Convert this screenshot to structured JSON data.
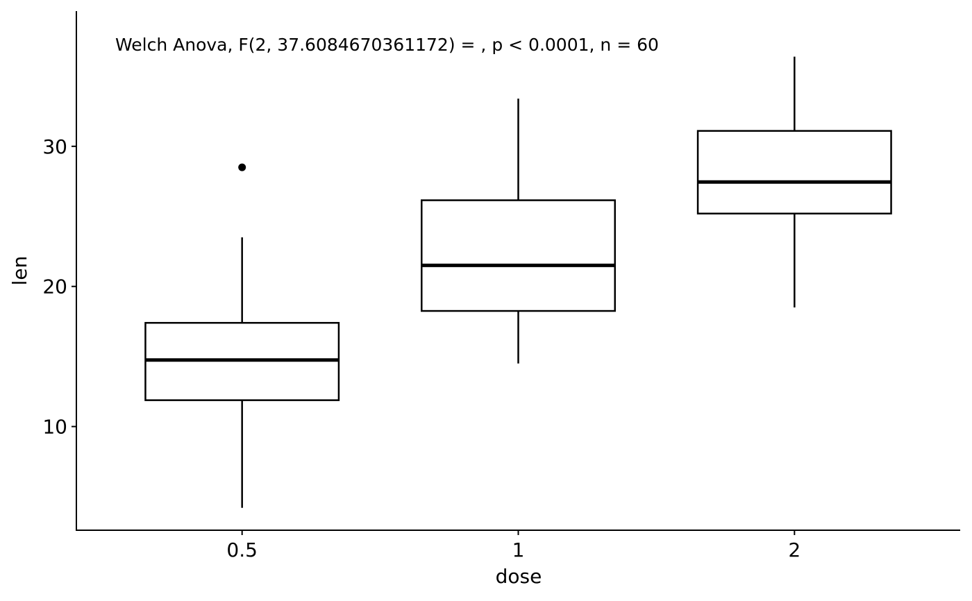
{
  "chart_data": {
    "type": "box",
    "title": "",
    "annotation": "Welch Anova, F(2, 37.6084670361172) = , p < 0.0001, n = 60",
    "xlabel": "dose",
    "ylabel": "len",
    "categories": [
      "0.5",
      "1",
      "2"
    ],
    "yticks": [
      10,
      20,
      30
    ],
    "ylim": [
      2.6,
      39.65
    ],
    "grid": false,
    "boxes": [
      {
        "category": "0.5",
        "whisker_low": 4.2,
        "q1": 11.88,
        "median": 14.75,
        "q3": 17.4,
        "whisker_high": 23.5,
        "outliers": [
          28.5
        ]
      },
      {
        "category": "1",
        "whisker_low": 14.5,
        "q1": 18.25,
        "median": 21.5,
        "q3": 26.15,
        "whisker_high": 33.4,
        "outliers": []
      },
      {
        "category": "2",
        "whisker_low": 18.5,
        "q1": 25.2,
        "median": 27.45,
        "q3": 31.1,
        "whisker_high": 36.4,
        "outliers": []
      }
    ],
    "colors": {
      "box_fill": "#ffffff",
      "stroke": "#000000"
    }
  }
}
